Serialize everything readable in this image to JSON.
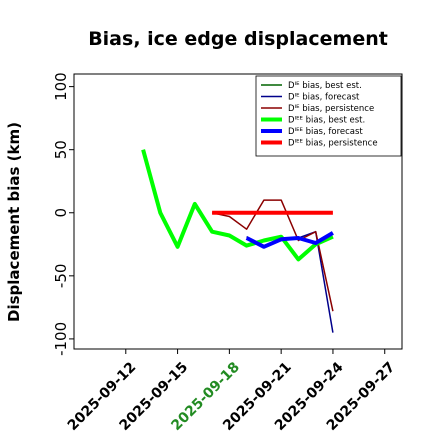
{
  "chart_data": {
    "type": "line",
    "title": "Bias, ice edge displacement",
    "xlabel": "",
    "ylabel": "Displacement bias (km)",
    "xlim": [
      "2025-09-09",
      "2025-09-28"
    ],
    "ylim": [
      -108,
      110
    ],
    "yticks": [
      100,
      50,
      0,
      -50,
      -100
    ],
    "xticks": [
      "2025-09-12",
      "2025-09-15",
      "2025-09-18",
      "2025-09-21",
      "2025-09-24",
      "2025-09-27"
    ],
    "highlight_tick": "2025-09-18",
    "highlight_color": "#228b22",
    "legend_position": "upper right",
    "grid": false,
    "series": [
      {
        "name": "Dᴵᴱ bias, best est.",
        "color": "#006400",
        "width": 1.5,
        "x": [],
        "y": []
      },
      {
        "name": "Dᴵᴱ bias, forecast",
        "color": "#00008b",
        "width": 1.5,
        "x": [
          "2025-09-19",
          "2025-09-20",
          "2025-09-21",
          "2025-09-22",
          "2025-09-23",
          "2025-09-24"
        ],
        "y": [
          -19,
          -26,
          -22,
          -20,
          -15,
          -95
        ]
      },
      {
        "name": "Dᴵᴱ bias, persistence",
        "color": "#8b0000",
        "width": 1.5,
        "x": [
          "2025-09-17",
          "2025-09-18",
          "2025-09-19",
          "2025-09-20",
          "2025-09-21",
          "2025-09-22",
          "2025-09-23",
          "2025-09-24"
        ],
        "y": [
          0,
          -3,
          -13,
          10,
          10,
          -22,
          -15,
          -78
        ]
      },
      {
        "name": "Dᴵᴱᴱ bias, best est.",
        "color": "#00ff00",
        "width": 4,
        "x": [
          "2025-09-13",
          "2025-09-14",
          "2025-09-15",
          "2025-09-16",
          "2025-09-17",
          "2025-09-18",
          "2025-09-19",
          "2025-09-20",
          "2025-09-21",
          "2025-09-22",
          "2025-09-23",
          "2025-09-24"
        ],
        "y": [
          50,
          0,
          -27,
          7,
          -15,
          -18,
          -26,
          -22,
          -19,
          -37,
          -25,
          -19
        ]
      },
      {
        "name": "Dᴵᴱᴱ bias, forecast",
        "color": "#0000ff",
        "width": 4,
        "x": [
          "2025-09-19",
          "2025-09-20",
          "2025-09-21",
          "2025-09-22",
          "2025-09-23",
          "2025-09-24"
        ],
        "y": [
          -20,
          -27,
          -21,
          -20,
          -24,
          -16
        ]
      },
      {
        "name": "Dᴵᴱᴱ bias, persistence",
        "color": "#ff0000",
        "width": 4,
        "x": [
          "2025-09-17",
          "2025-09-18",
          "2025-09-19",
          "2025-09-20",
          "2025-09-21",
          "2025-09-22",
          "2025-09-23",
          "2025-09-24"
        ],
        "y": [
          0,
          0,
          0,
          0,
          0,
          0,
          0,
          0
        ]
      }
    ]
  }
}
